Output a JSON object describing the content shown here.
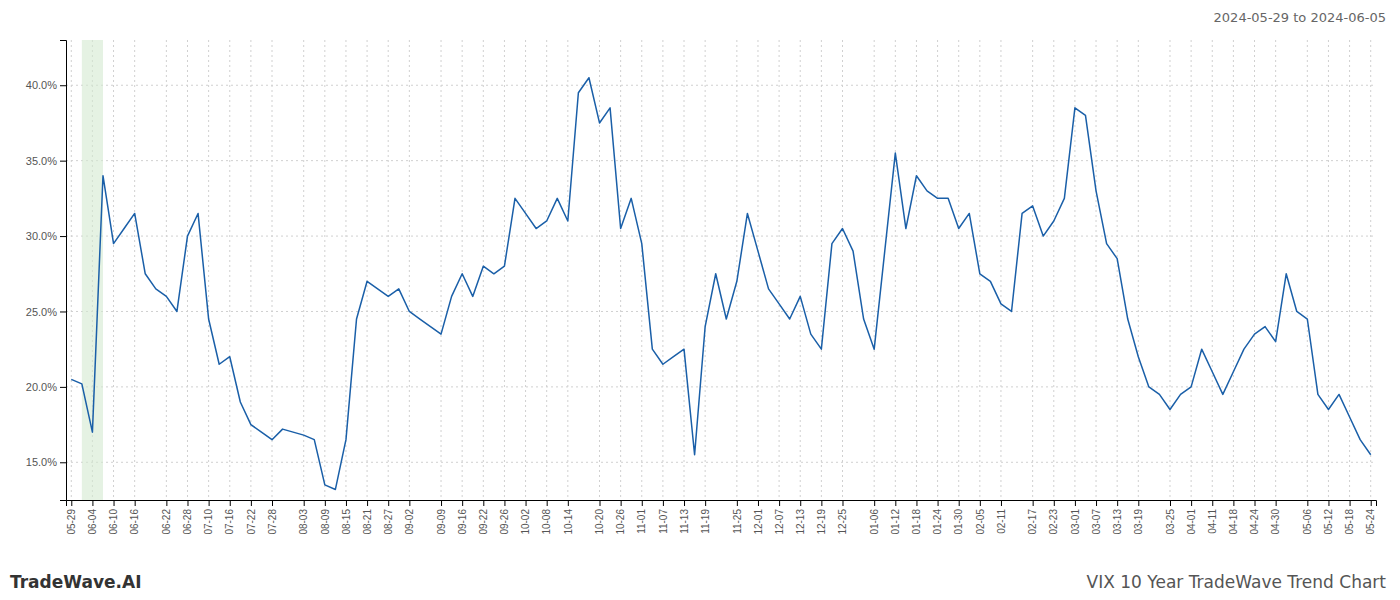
{
  "chart_data": {
    "type": "line",
    "title": "VIX 10 Year TradeWave Trend Chart",
    "subtitle": "2024-05-29 to 2024-06-05",
    "annotations": [
      "TradeWave.AI"
    ],
    "color": "#1a5fa8",
    "grid": true,
    "ylim": [
      12.5,
      43.0
    ],
    "yticks": [
      {
        "value": 15.0,
        "label": "15.0%"
      },
      {
        "value": 20.0,
        "label": "20.0%"
      },
      {
        "value": 25.0,
        "label": "25.0%"
      },
      {
        "value": 30.0,
        "label": "30.0%"
      },
      {
        "value": 35.0,
        "label": "35.0%"
      },
      {
        "value": 40.0,
        "label": "40.0%"
      }
    ],
    "highlight": {
      "x": [
        1,
        3
      ],
      "color": "#d4ead0"
    },
    "categories": [
      "05-29",
      null,
      "06-04",
      null,
      "06-10",
      null,
      "06-16",
      null,
      null,
      "06-22",
      null,
      "06-28",
      null,
      "07-10",
      null,
      "07-16",
      null,
      "07-22",
      null,
      "07-28",
      null,
      null,
      "08-03",
      null,
      "08-09",
      null,
      "08-15",
      null,
      "08-21",
      null,
      "08-27",
      null,
      "09-02",
      null,
      null,
      "09-09",
      null,
      "09-16",
      null,
      "09-22",
      null,
      "09-26",
      null,
      "10-02",
      null,
      "10-08",
      null,
      "10-14",
      null,
      null,
      "10-20",
      null,
      "10-26",
      null,
      "11-01",
      null,
      "11-07",
      null,
      "11-13",
      null,
      "11-19",
      null,
      null,
      "11-25",
      null,
      "12-01",
      null,
      "12-07",
      null,
      "12-13",
      null,
      "12-19",
      null,
      "12-25",
      null,
      null,
      "01-06",
      null,
      "01-12",
      null,
      "01-18",
      null,
      "01-24",
      null,
      "01-30",
      null,
      "02-05",
      null,
      "02-11",
      null,
      null,
      "02-17",
      null,
      "02-23",
      null,
      "03-01",
      null,
      "03-07",
      null,
      "03-13",
      null,
      "03-19",
      null,
      null,
      "03-25",
      null,
      "04-01",
      null,
      "04-11",
      null,
      "04-18",
      null,
      "04-24",
      null,
      "04-30",
      null,
      null,
      "05-06",
      null,
      "05-12",
      null,
      "05-18",
      null,
      "05-24"
    ],
    "values": [
      20.5,
      20.2,
      17.0,
      34.0,
      29.5,
      30.5,
      31.5,
      27.5,
      26.5,
      26.0,
      25.0,
      30.0,
      31.5,
      24.5,
      21.5,
      22.0,
      19.0,
      17.5,
      17.0,
      16.5,
      17.2,
      17.0,
      16.8,
      16.5,
      13.5,
      13.2,
      16.5,
      24.5,
      27.0,
      26.5,
      26.0,
      26.5,
      25.0,
      24.5,
      24.0,
      23.5,
      26.0,
      27.5,
      26.0,
      28.0,
      27.5,
      28.0,
      32.5,
      31.5,
      30.5,
      31.0,
      32.5,
      31.0,
      39.5,
      40.5,
      37.5,
      38.5,
      30.5,
      32.5,
      29.5,
      22.5,
      21.5,
      22.0,
      22.5,
      15.5,
      24.0,
      27.5,
      24.5,
      27.0,
      31.5,
      29.0,
      26.5,
      25.5,
      24.5,
      26.0,
      23.5,
      22.5,
      29.5,
      30.5,
      29.0,
      24.5,
      22.5,
      29.0,
      35.5,
      30.5,
      34.0,
      33.0,
      32.5,
      32.5,
      30.5,
      31.5,
      27.5,
      27.0,
      25.5,
      25.0,
      31.5,
      32.0,
      30.0,
      31.0,
      32.5,
      38.5,
      38.0,
      33.0,
      29.5,
      28.5,
      24.5,
      22.0,
      20.0,
      19.5,
      18.5,
      19.5,
      20.0,
      22.5,
      21.0,
      19.5,
      21.0,
      22.5,
      23.5,
      24.0,
      23.0,
      27.5,
      25.0,
      24.5,
      19.5,
      18.5,
      19.5,
      18.0,
      16.5,
      15.5
    ]
  }
}
